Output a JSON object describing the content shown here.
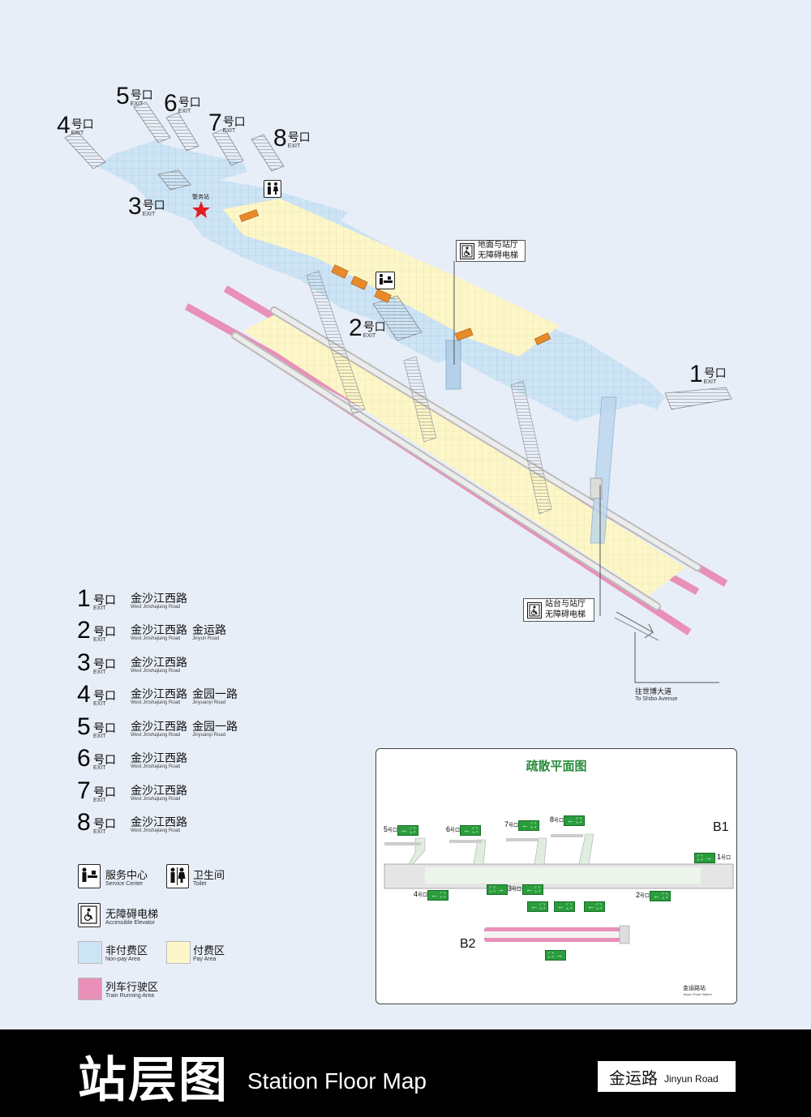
{
  "map_exits": [
    {
      "num": "1",
      "cn": "号口",
      "en": "EXIT"
    },
    {
      "num": "2",
      "cn": "号口",
      "en": "EXIT"
    },
    {
      "num": "3",
      "cn": "号口",
      "en": "EXIT"
    },
    {
      "num": "4",
      "cn": "号口",
      "en": "EXIT"
    },
    {
      "num": "5",
      "cn": "号口",
      "en": "EXIT"
    },
    {
      "num": "6",
      "cn": "号口",
      "en": "EXIT"
    },
    {
      "num": "7",
      "cn": "号口",
      "en": "EXIT"
    },
    {
      "num": "8",
      "cn": "号口",
      "en": "EXIT"
    }
  ],
  "police_station": "警务站",
  "callouts": {
    "ground_elevator": {
      "line1": "地面与站厅",
      "line2": "无障碍电梯"
    },
    "platform_elevator": {
      "line1": "站台与站厅",
      "line2": "无障碍电梯"
    }
  },
  "direction": {
    "cn": "往世博大道",
    "en": "To Shibo Avenue"
  },
  "legend_exits": [
    {
      "num": "1",
      "cn": "号口",
      "en": "EXIT",
      "roads": [
        {
          "cn": "金沙江西路",
          "en": "West Jinshajiang Road"
        }
      ]
    },
    {
      "num": "2",
      "cn": "号口",
      "en": "EXIT",
      "roads": [
        {
          "cn": "金沙江西路",
          "en": "West Jinshajiang Road"
        },
        {
          "cn": "金运路",
          "en": "Jinyun Road"
        }
      ]
    },
    {
      "num": "3",
      "cn": "号口",
      "en": "EXIT",
      "roads": [
        {
          "cn": "金沙江西路",
          "en": "West Jinshajiang Road"
        }
      ]
    },
    {
      "num": "4",
      "cn": "号口",
      "en": "EXIT",
      "roads": [
        {
          "cn": "金沙江西路",
          "en": "West Jinshajiang Road"
        },
        {
          "cn": "金园一路",
          "en": "Jinyuanyi Road"
        }
      ]
    },
    {
      "num": "5",
      "cn": "号口",
      "en": "EXIT",
      "roads": [
        {
          "cn": "金沙江西路",
          "en": "West Jinshajiang Road"
        },
        {
          "cn": "金园一路",
          "en": "Jinyuanyi Road"
        }
      ]
    },
    {
      "num": "6",
      "cn": "号口",
      "en": "EXIT",
      "roads": [
        {
          "cn": "金沙江西路",
          "en": "West Jinshajiang Road"
        }
      ]
    },
    {
      "num": "7",
      "cn": "号口",
      "en": "EXIT",
      "roads": [
        {
          "cn": "金沙江西路",
          "en": "West Jinshajiang Road"
        }
      ]
    },
    {
      "num": "8",
      "cn": "号口",
      "en": "EXIT",
      "roads": [
        {
          "cn": "金沙江西路",
          "en": "West Jinshajiang Road"
        }
      ]
    }
  ],
  "legend_icons": {
    "service": {
      "cn": "服务中心",
      "en": "Service Center"
    },
    "toilet": {
      "cn": "卫生间",
      "en": "Toilet"
    },
    "elevator": {
      "cn": "无障碍电梯",
      "en": "Accessible Elevator"
    },
    "nonpay": {
      "cn": "非付费区",
      "en": "Non-pay Area"
    },
    "pay": {
      "cn": "付费区",
      "en": "Pay Area"
    },
    "train": {
      "cn": "列车行驶区",
      "en": "Train Running Area"
    }
  },
  "colors": {
    "nonpay": "#cde4f5",
    "pay": "#fdf6c8",
    "train": "#e890b8",
    "sign_green": "#2a9d3c"
  },
  "evac": {
    "title": "疏散平面图",
    "b1": "B1",
    "b2": "B2",
    "exits": [
      {
        "num": "5",
        "cn": "号口"
      },
      {
        "num": "6",
        "cn": "号口"
      },
      {
        "num": "7",
        "cn": "号口"
      },
      {
        "num": "8",
        "cn": "号口"
      },
      {
        "num": "1",
        "cn": "号口"
      },
      {
        "num": "4",
        "cn": "号口"
      },
      {
        "num": "3",
        "cn": "号口"
      },
      {
        "num": "2",
        "cn": "号口"
      }
    ],
    "station_cn": "金运路站",
    "station_en": "Jinyun Road Station"
  },
  "footer": {
    "title_cn": "站层图",
    "title_en": "Station Floor Map",
    "station_cn": "金运路",
    "station_en": "Jinyun Road"
  }
}
